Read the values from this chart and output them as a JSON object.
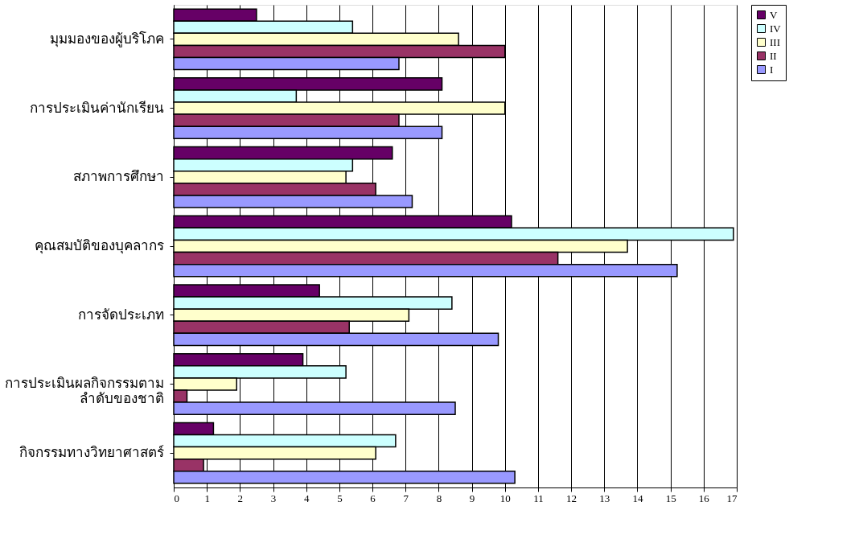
{
  "chart_data": {
    "type": "bar",
    "orientation": "horizontal",
    "categories": [
      "มุมมองของผู้บริโภค",
      "การประเมินค่านักเรียน",
      "สภาพการศึกษา",
      "คุณสมบัติของบุคลากร",
      "การจัดประเภท",
      "การประเมินผลกิจกรรมตาม\nลำดับของชาติ",
      "กิจกรรมทางวิทยาศาสตร์"
    ],
    "series": [
      {
        "name": "V",
        "color": "#660066",
        "values": [
          2.5,
          8.1,
          6.6,
          10.2,
          4.4,
          3.9,
          1.2
        ]
      },
      {
        "name": "IV",
        "color": "#ccffff",
        "values": [
          5.4,
          3.7,
          5.4,
          16.9,
          8.4,
          5.2,
          6.7
        ]
      },
      {
        "name": "III",
        "color": "#ffffcc",
        "values": [
          8.6,
          10.0,
          5.2,
          13.7,
          7.1,
          1.9,
          6.1
        ]
      },
      {
        "name": "II",
        "color": "#993366",
        "values": [
          10.0,
          6.8,
          6.1,
          11.6,
          5.3,
          0.4,
          0.9
        ]
      },
      {
        "name": "I",
        "color": "#9999ff",
        "values": [
          6.8,
          8.1,
          7.2,
          15.2,
          9.8,
          8.5,
          10.3
        ]
      }
    ],
    "xlim": [
      0,
      17
    ],
    "xticks": [
      0,
      1,
      2,
      3,
      4,
      5,
      6,
      7,
      8,
      9,
      10,
      11,
      12,
      13,
      14,
      15,
      16,
      17
    ],
    "grid": "x",
    "legend": "right"
  }
}
